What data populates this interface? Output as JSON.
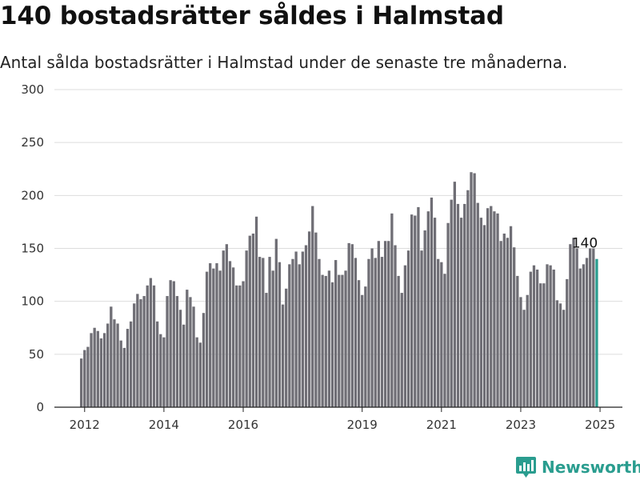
{
  "header": {
    "title": "140 bostadsrätter såldes i Halmstad",
    "subtitle": "Antal sålda bostadsrätter i Halmstad under de senaste tre månaderna."
  },
  "brand": {
    "name": "Newsworthy"
  },
  "colors": {
    "bar": "#6f6e75",
    "highlight": "#2a9d8f",
    "grid": "#dddddd",
    "brand": "#2a9d8f"
  },
  "chart_data": {
    "type": "bar",
    "title": "140 bostadsrätter såldes i Halmstad",
    "subtitle": "Antal sålda bostadsrätter i Halmstad under de senaste tre månaderna.",
    "xlabel": "",
    "ylabel": "",
    "ylim": [
      0,
      300
    ],
    "yticks": [
      0,
      50,
      100,
      150,
      200,
      250,
      300
    ],
    "x_ticks": [
      {
        "label": "2012",
        "index": 1
      },
      {
        "label": "2014",
        "index": 25
      },
      {
        "label": "2016",
        "index": 49
      },
      {
        "label": "2019",
        "index": 85
      },
      {
        "label": "2021",
        "index": 109
      },
      {
        "label": "2023",
        "index": 133
      },
      {
        "label": "2025",
        "index": 157
      }
    ],
    "grid": true,
    "highlight_last": true,
    "last_value_label": "140",
    "values": [
      46,
      54,
      57,
      70,
      75,
      72,
      65,
      70,
      79,
      95,
      83,
      79,
      63,
      56,
      74,
      81,
      98,
      107,
      102,
      105,
      115,
      122,
      115,
      81,
      69,
      66,
      105,
      120,
      119,
      105,
      92,
      78,
      111,
      104,
      95,
      66,
      61,
      89,
      128,
      136,
      131,
      136,
      129,
      148,
      154,
      138,
      132,
      115,
      115,
      119,
      148,
      162,
      164,
      180,
      142,
      141,
      108,
      142,
      129,
      159,
      137,
      97,
      112,
      135,
      140,
      147,
      135,
      147,
      153,
      166,
      190,
      165,
      140,
      125,
      124,
      129,
      118,
      139,
      125,
      125,
      129,
      155,
      154,
      141,
      120,
      106,
      114,
      140,
      150,
      141,
      157,
      142,
      157,
      157,
      183,
      153,
      124,
      108,
      134,
      148,
      182,
      181,
      189,
      148,
      167,
      185,
      198,
      179,
      140,
      137,
      126,
      174,
      196,
      213,
      192,
      179,
      192,
      205,
      222,
      221,
      193,
      179,
      172,
      188,
      190,
      185,
      183,
      157,
      164,
      160,
      171,
      151,
      124,
      104,
      92,
      106,
      128,
      134,
      130,
      117,
      117,
      135,
      134,
      130,
      101,
      98,
      92,
      121,
      154,
      160,
      150,
      131,
      135,
      141,
      150,
      150,
      140
    ]
  }
}
